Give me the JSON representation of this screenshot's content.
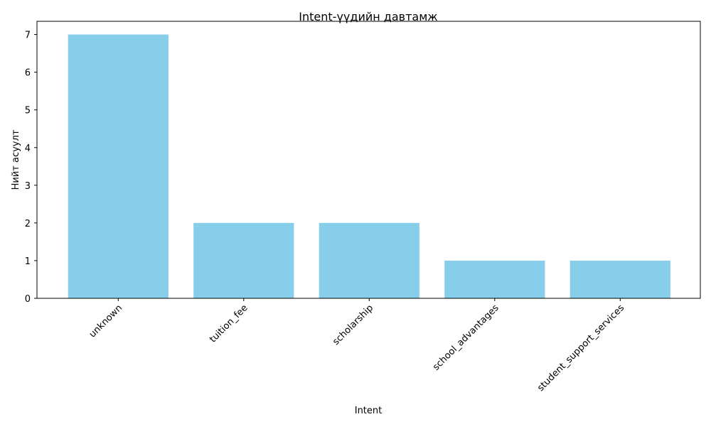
{
  "chart_data": {
    "type": "bar",
    "title": "Intent-үүдийн давтамж",
    "xlabel": "Intent",
    "ylabel": "Нийт асуулт",
    "categories": [
      "unknown",
      "tuition_fee",
      "scholarship",
      "school_advantages",
      "student_support_services"
    ],
    "values": [
      7,
      2,
      2,
      1,
      1
    ],
    "ylim": [
      0,
      7.35
    ],
    "yticks": [
      0,
      1,
      2,
      3,
      4,
      5,
      6,
      7
    ],
    "xtick_rotation": 45,
    "bar_color": "#87CEEB",
    "grid": false,
    "legend": "none"
  }
}
